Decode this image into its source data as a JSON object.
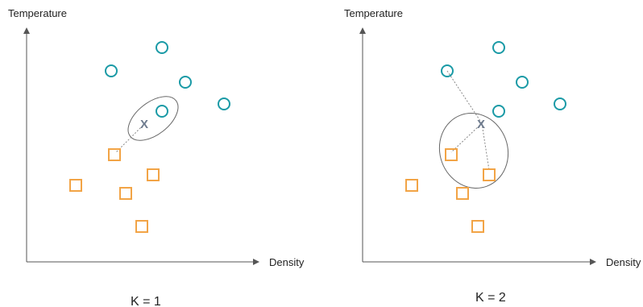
{
  "panels": [
    {
      "id": "k1",
      "y_label": "Temperature",
      "x_label": "Density",
      "caption": "K = 1",
      "query_label": "X"
    },
    {
      "id": "k2",
      "y_label": "Temperature",
      "x_label": "Density",
      "caption": "K = 2",
      "query_label": "X"
    }
  ],
  "colors": {
    "circle_class": "#1a9aa6",
    "square_class": "#f2a446",
    "axis": "#555555",
    "neighbor_line": "#888888",
    "ellipse": "#666666",
    "query": "#6e7b8e"
  }
}
